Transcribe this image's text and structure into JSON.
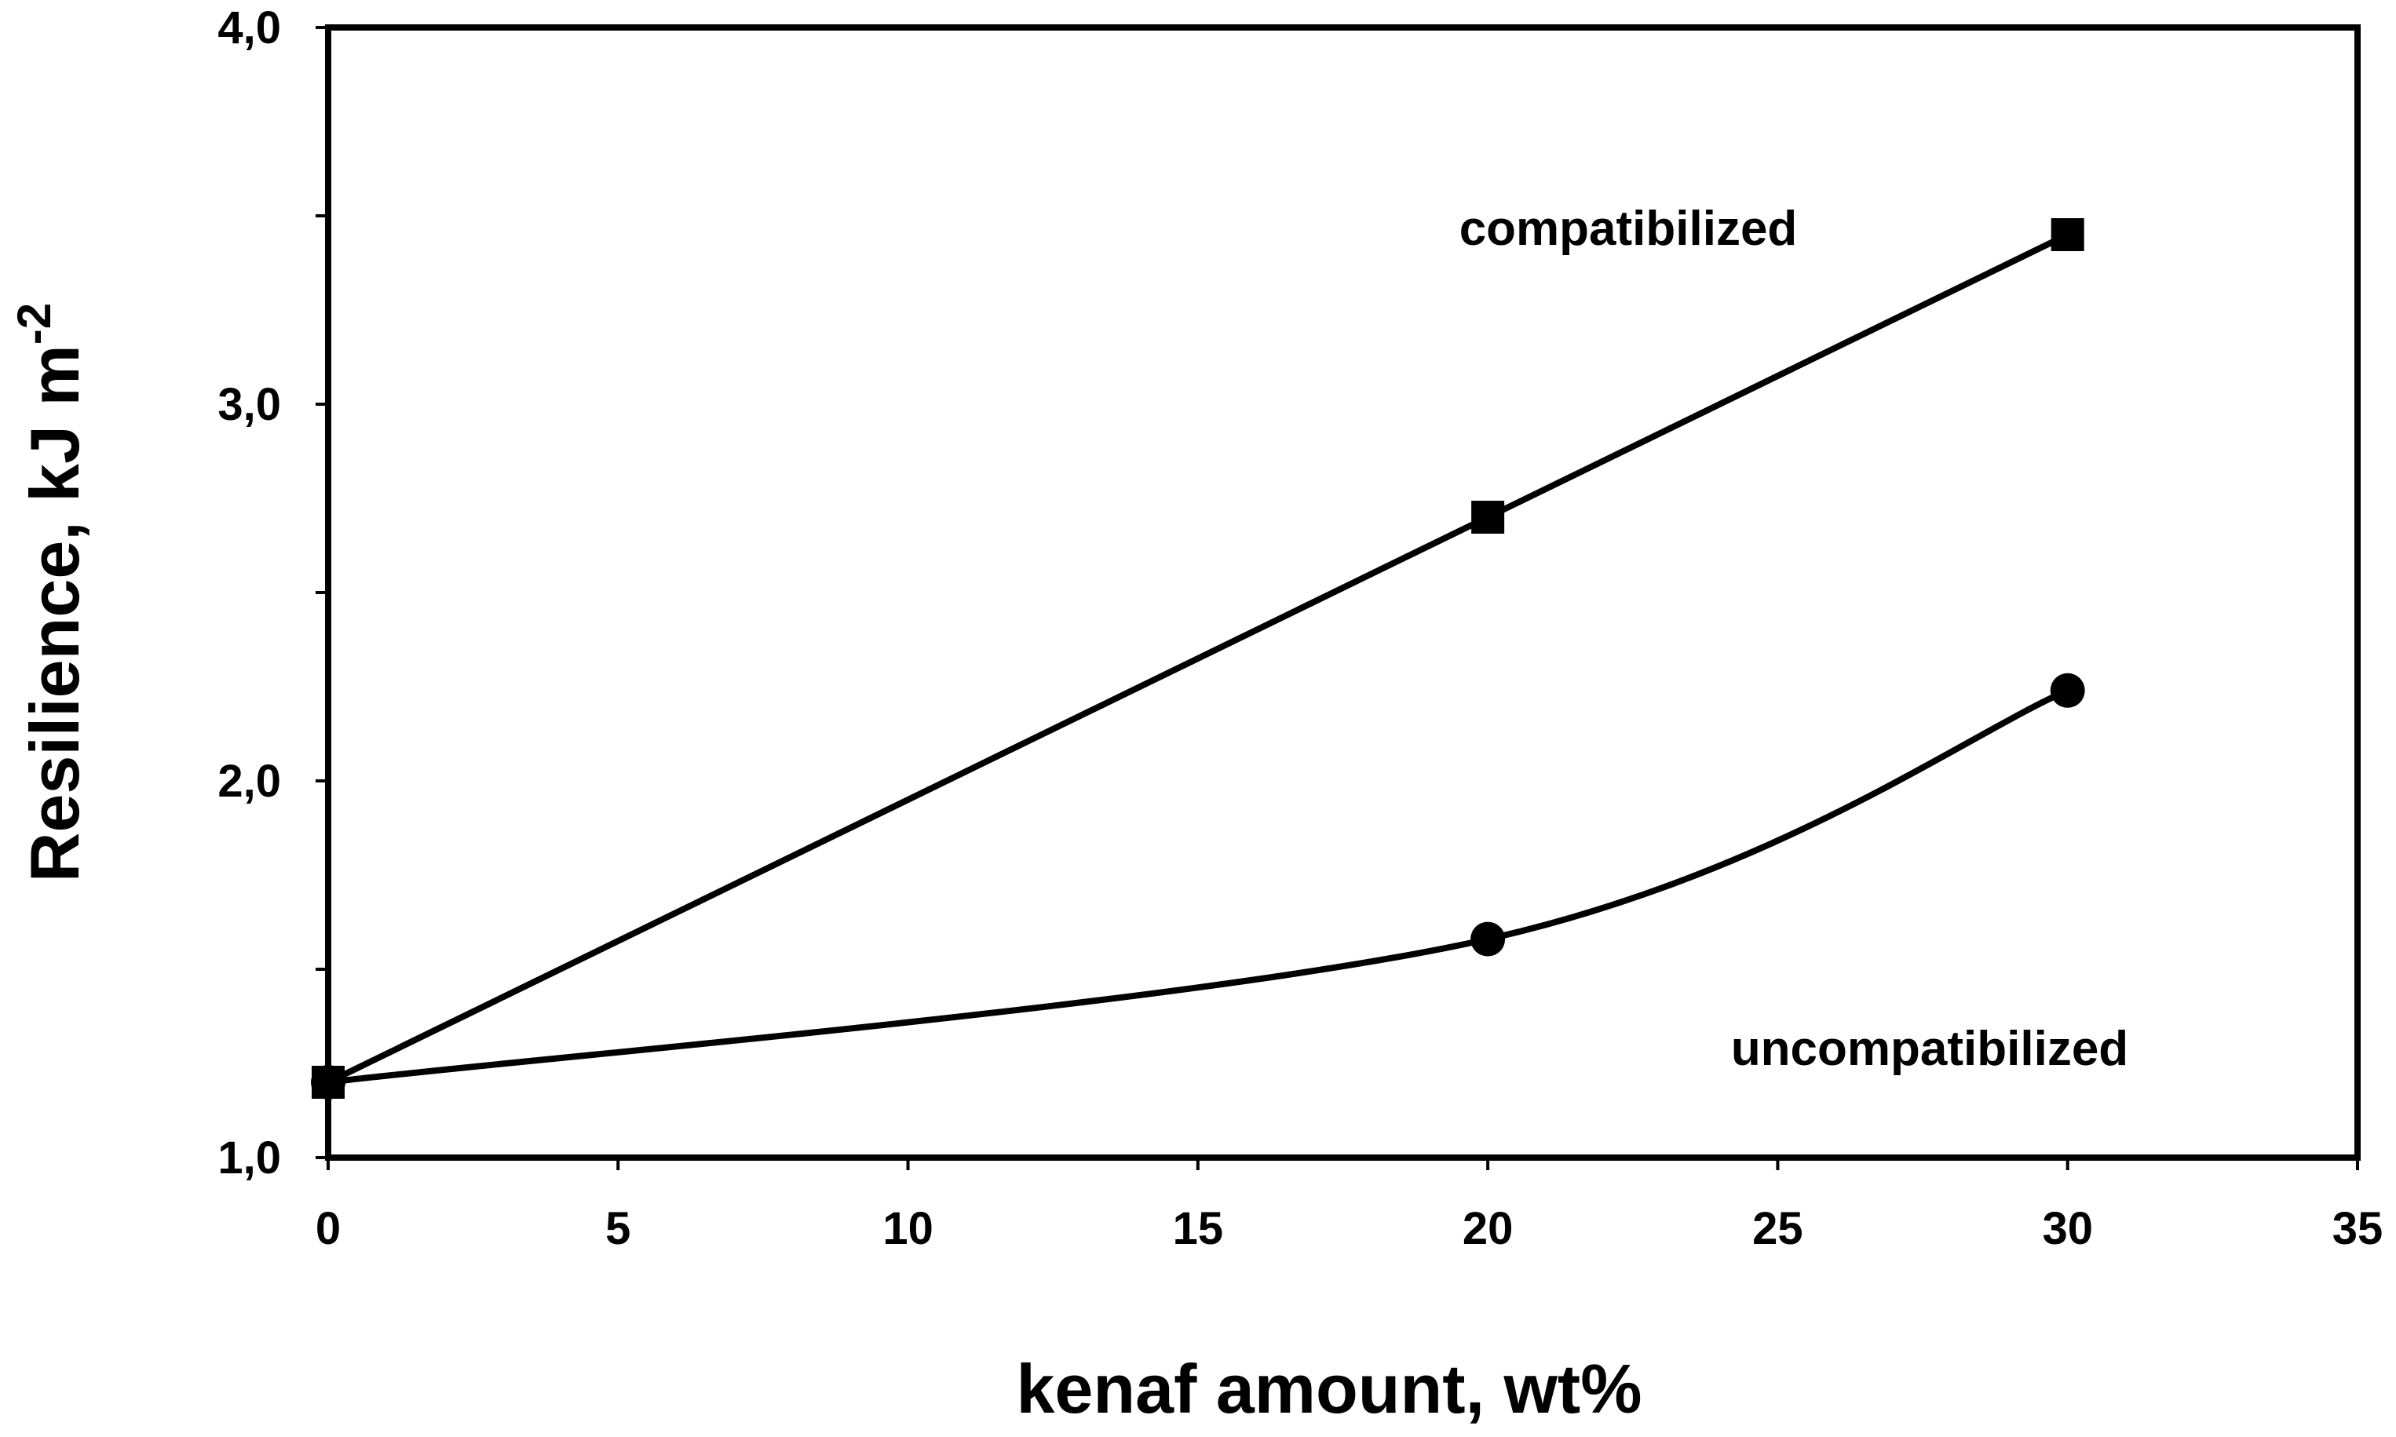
{
  "chart_data": {
    "type": "line",
    "x_label": "kenaf amount, wt%",
    "y_label": {
      "text": "Resilience, kJ m",
      "superscript": "-2"
    },
    "xlim": [
      0,
      35
    ],
    "xticks": [
      0,
      5,
      10,
      15,
      20,
      25,
      30,
      35
    ],
    "ylim": [
      1.0,
      4.0
    ],
    "yticks": [
      {
        "value": 1.0,
        "label": "1,0"
      },
      {
        "value": 2.0,
        "label": "2,0"
      },
      {
        "value": 3.0,
        "label": "3,0"
      },
      {
        "value": 4.0,
        "label": "4,0"
      }
    ],
    "minor_yticks": [
      1.5,
      2.5,
      3.5
    ],
    "smooth": true,
    "series": [
      {
        "name": "compatibilized",
        "color": "#000000",
        "marker": "square",
        "x": [
          0,
          20,
          30
        ],
        "values": [
          1.2,
          2.7,
          3.45
        ]
      },
      {
        "name": "uncompatibilized",
        "color": "#000000",
        "marker": "circle",
        "x": [
          0,
          20,
          30
        ],
        "values": [
          1.2,
          1.58,
          2.24
        ]
      }
    ]
  }
}
